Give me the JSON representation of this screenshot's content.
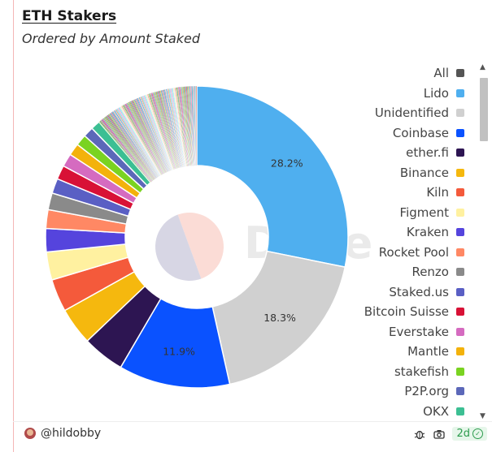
{
  "header": {
    "title": "ETH Stakers",
    "subtitle": "Ordered by Amount Staked"
  },
  "watermark": "Dune",
  "chart_data": {
    "type": "pie",
    "title": "ETH Stakers",
    "subtitle": "Ordered by Amount Staked",
    "donut": true,
    "legend_position": "right",
    "slices": [
      {
        "name": "Lido",
        "value": 28.2,
        "color": "#4fafef",
        "label": "28.2%"
      },
      {
        "name": "Unidentified",
        "value": 18.3,
        "color": "#d0d0d0",
        "label": "18.3%"
      },
      {
        "name": "Coinbase",
        "value": 11.9,
        "color": "#0a52ff",
        "label": "11.9%"
      },
      {
        "name": "ether.fi",
        "value": 4.5,
        "color": "#2d1552"
      },
      {
        "name": "Binance",
        "value": 4.0,
        "color": "#f5b80e"
      },
      {
        "name": "Kiln",
        "value": 3.5,
        "color": "#f45a3b"
      },
      {
        "name": "Figment",
        "value": 3.0,
        "color": "#fff1a0"
      },
      {
        "name": "Kraken",
        "value": 2.5,
        "color": "#5544dd"
      },
      {
        "name": "Rocket Pool",
        "value": 2.0,
        "color": "#ff8864"
      },
      {
        "name": "Renzo",
        "value": 1.8,
        "color": "#8a8a8a"
      },
      {
        "name": "Staked.us",
        "value": 1.6,
        "color": "#5a5fc4"
      },
      {
        "name": "Bitcoin Suisse",
        "value": 1.5,
        "color": "#d81136"
      },
      {
        "name": "Everstake",
        "value": 1.4,
        "color": "#d56bc0"
      },
      {
        "name": "Mantle",
        "value": 1.3,
        "color": "#f3b20b"
      },
      {
        "name": "stakefish",
        "value": 1.2,
        "color": "#7ad321"
      },
      {
        "name": "P2P.org",
        "value": 1.1,
        "color": "#5c68b9"
      },
      {
        "name": "OKX",
        "value": 1.0,
        "color": "#3cbf93"
      }
    ],
    "tail_colors": [
      "#a6d652",
      "#1d7a6a",
      "#f58231",
      "#3e6fd1",
      "#e6194b",
      "#9b59b6",
      "#2ecc71",
      "#e67e22",
      "#1abc9c",
      "#d35400",
      "#27ae60",
      "#8e44ad",
      "#c0392b",
      "#16a085",
      "#f39c12",
      "#2980b9",
      "#7f8c8d",
      "#e84393",
      "#00b894",
      "#6c5ce7",
      "#fdcb6e",
      "#0984e3",
      "#b2bec3",
      "#e17055",
      "#55efc4",
      "#a29bfe",
      "#fab1a0",
      "#74b9ff",
      "#81ecec",
      "#ffeaa7",
      "#dfe6e9",
      "#ff7675"
    ]
  },
  "legend": {
    "items": [
      {
        "label": "All",
        "color": "#555555"
      },
      {
        "label": "Lido",
        "color": "#4fafef"
      },
      {
        "label": "Unidentified",
        "color": "#d0d0d0"
      },
      {
        "label": "Coinbase",
        "color": "#0a52ff"
      },
      {
        "label": "ether.fi",
        "color": "#2d1552"
      },
      {
        "label": "Binance",
        "color": "#f5b80e"
      },
      {
        "label": "Kiln",
        "color": "#f45a3b"
      },
      {
        "label": "Figment",
        "color": "#fff1a0"
      },
      {
        "label": "Kraken",
        "color": "#5544dd"
      },
      {
        "label": "Rocket Pool",
        "color": "#ff8864"
      },
      {
        "label": "Renzo",
        "color": "#8a8a8a"
      },
      {
        "label": "Staked.us",
        "color": "#5a5fc4"
      },
      {
        "label": "Bitcoin Suisse",
        "color": "#d81136"
      },
      {
        "label": "Everstake",
        "color": "#d56bc0"
      },
      {
        "label": "Mantle",
        "color": "#f3b20b"
      },
      {
        "label": "stakefish",
        "color": "#7ad321"
      },
      {
        "label": "P2P.org",
        "color": "#5c68b9"
      },
      {
        "label": "OKX",
        "color": "#3cbf93"
      }
    ]
  },
  "footer": {
    "author": "@hildobby",
    "age": "2d",
    "icons": [
      "bug-icon",
      "camera-icon",
      "check-circle-icon"
    ]
  }
}
